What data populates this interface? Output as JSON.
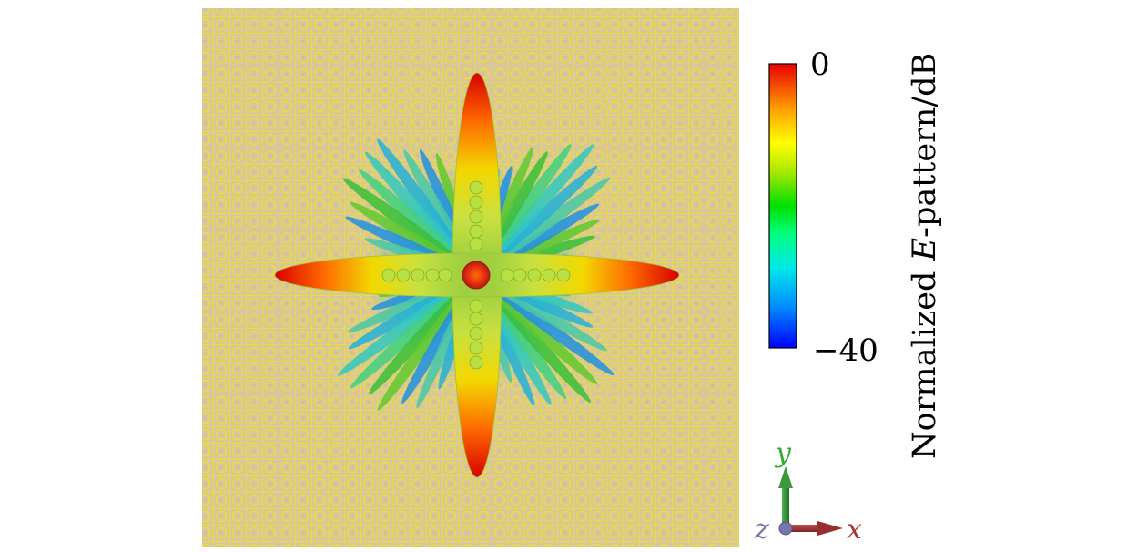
{
  "colorbar": {
    "max_label": "0",
    "min_label": "−40",
    "title_prefix": "Normalized ",
    "title_var": "E",
    "title_suffix": "-pattern/dB",
    "colors": [
      "#0000ff",
      "#00aaff",
      "#00e0e0",
      "#00ff80",
      "#00e000",
      "#a0e000",
      "#ffff00",
      "#ffb000",
      "#ff6000",
      "#e80000"
    ]
  },
  "axes": {
    "x_label": "x",
    "y_label": "y",
    "z_label": "z",
    "x_color": "#aa3333",
    "y_color": "#33aa33",
    "z_color": "#7777aa"
  },
  "surface": {
    "background_color": "#d9c79a",
    "grid_color": "#f2ea00"
  }
}
